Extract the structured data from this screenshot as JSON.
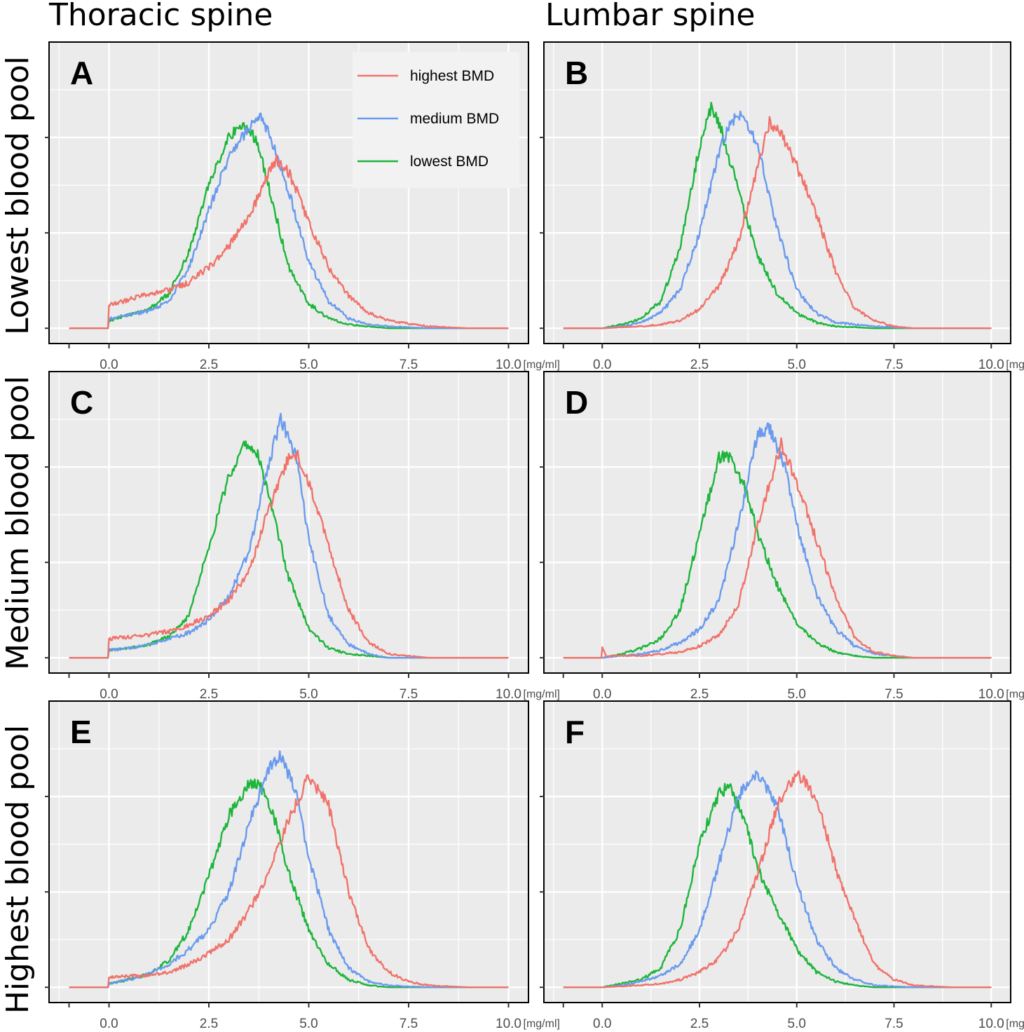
{
  "column_titles": [
    "Thoracic spine",
    "Lumbar spine"
  ],
  "row_titles": [
    "Lowest blood pool",
    "Medium blood pool",
    "Highest blood pool"
  ],
  "x_unit": "[mg/ml]",
  "colors": {
    "highest": "#F0736B",
    "medium": "#6A9AEE",
    "lowest": "#1DB53B",
    "panel_bg": "#EBEBEB",
    "grid": "#FFFFFF"
  },
  "legend": [
    "highest BMD",
    "medium BMD",
    "lowest BMD"
  ],
  "chart_data": [
    {
      "type": "line",
      "panel": "A",
      "column": "Thoracic spine",
      "row": "Lowest blood pool",
      "xlabel": "",
      "ylabel": "",
      "xlim": [
        -1,
        10
      ],
      "ylim": [
        0,
        1.2
      ],
      "xticks": [
        "0.0",
        "2.5",
        "5.0",
        "7.5",
        "10.0"
      ],
      "grid": true,
      "series": [
        {
          "name": "highest BMD",
          "x": [
            -1,
            0,
            0,
            0.5,
            1,
            1.5,
            2,
            2.5,
            3,
            3.5,
            4,
            4.2,
            4.5,
            5,
            5.5,
            6,
            6.5,
            7,
            8,
            9,
            10
          ],
          "y": [
            0,
            0,
            0.12,
            0.15,
            0.18,
            0.2,
            0.24,
            0.32,
            0.43,
            0.58,
            0.82,
            0.88,
            0.82,
            0.56,
            0.32,
            0.17,
            0.08,
            0.04,
            0.01,
            0,
            0
          ]
        },
        {
          "name": "medium BMD",
          "x": [
            -1,
            0,
            0,
            0.5,
            1,
            1.5,
            2,
            2.5,
            3,
            3.5,
            3.75,
            4,
            4.5,
            5,
            5.5,
            6,
            6.5,
            7,
            8,
            9,
            10
          ],
          "y": [
            0,
            0,
            0.05,
            0.07,
            0.09,
            0.14,
            0.32,
            0.62,
            0.9,
            1.05,
            1.12,
            1.02,
            0.72,
            0.35,
            0.14,
            0.05,
            0.02,
            0.01,
            0,
            0,
            0
          ]
        },
        {
          "name": "lowest BMD",
          "x": [
            -1,
            0,
            0,
            0.5,
            1,
            1.5,
            2,
            2.5,
            3,
            3.4,
            3.7,
            4,
            4.5,
            5,
            5.5,
            6,
            6.5,
            7,
            8,
            9,
            10
          ],
          "y": [
            0,
            0,
            0.04,
            0.07,
            0.1,
            0.18,
            0.4,
            0.75,
            1,
            1.07,
            0.98,
            0.74,
            0.32,
            0.13,
            0.05,
            0.02,
            0.01,
            0,
            0,
            0,
            0
          ]
        }
      ]
    },
    {
      "type": "line",
      "panel": "B",
      "column": "Lumbar spine",
      "row": "Lowest blood pool",
      "xlabel": "",
      "ylabel": "",
      "xlim": [
        -1,
        10
      ],
      "ylim": [
        0,
        1.2
      ],
      "xticks": [
        "0.0",
        "2.5",
        "5.0",
        "7.5",
        "10.0"
      ],
      "grid": true,
      "series": [
        {
          "name": "highest BMD",
          "x": [
            -1,
            0,
            1,
            1.5,
            2,
            2.5,
            3,
            3.5,
            4,
            4.3,
            4.6,
            5,
            5.5,
            6,
            6.5,
            7,
            7.5,
            8,
            9,
            10
          ],
          "y": [
            0,
            0,
            0.01,
            0.02,
            0.04,
            0.1,
            0.22,
            0.45,
            0.85,
            1.08,
            1.02,
            0.85,
            0.6,
            0.3,
            0.1,
            0.04,
            0.01,
            0,
            0,
            0
          ]
        },
        {
          "name": "medium BMD",
          "x": [
            -1,
            0,
            0.5,
            1,
            1.5,
            2,
            2.5,
            3,
            3.3,
            3.6,
            4,
            4.5,
            5,
            5.5,
            6,
            7,
            8,
            9,
            10
          ],
          "y": [
            0,
            0,
            0.01,
            0.03,
            0.08,
            0.2,
            0.5,
            0.92,
            1.08,
            1.14,
            0.95,
            0.52,
            0.2,
            0.08,
            0.03,
            0.01,
            0,
            0,
            0
          ]
        },
        {
          "name": "lowest BMD",
          "x": [
            -1,
            0,
            0.5,
            1,
            1.5,
            2,
            2.5,
            2.8,
            3,
            3.5,
            4,
            4.5,
            5,
            5.5,
            6,
            7,
            8,
            9,
            10
          ],
          "y": [
            0,
            0,
            0.02,
            0.05,
            0.14,
            0.42,
            0.95,
            1.15,
            1.08,
            0.72,
            0.38,
            0.18,
            0.08,
            0.03,
            0.01,
            0,
            0,
            0,
            0
          ]
        }
      ]
    },
    {
      "type": "line",
      "panel": "C",
      "column": "Thoracic spine",
      "row": "Medium blood pool",
      "xlabel": "",
      "ylabel": "",
      "xlim": [
        -1,
        10
      ],
      "ylim": [
        0,
        1.2
      ],
      "xticks": [
        "0.0",
        "2.5",
        "5.0",
        "7.5",
        "10.0"
      ],
      "grid": true,
      "series": [
        {
          "name": "highest BMD",
          "x": [
            -1,
            0,
            0,
            0.5,
            1,
            1.5,
            2,
            2.5,
            3,
            3.5,
            4,
            4.5,
            4.7,
            5,
            5.5,
            6,
            6.5,
            7,
            8,
            9,
            10
          ],
          "y": [
            0,
            0,
            0.1,
            0.11,
            0.12,
            0.14,
            0.17,
            0.22,
            0.3,
            0.45,
            0.78,
            1.05,
            1.07,
            0.92,
            0.58,
            0.25,
            0.08,
            0.02,
            0,
            0,
            0
          ]
        },
        {
          "name": "medium BMD",
          "x": [
            -1,
            0,
            0,
            0.5,
            1,
            1.5,
            2,
            2.5,
            3,
            3.5,
            4,
            4.3,
            4.7,
            5,
            5.5,
            6,
            6.5,
            7,
            8,
            9,
            10
          ],
          "y": [
            0,
            0,
            0.04,
            0.05,
            0.07,
            0.1,
            0.13,
            0.2,
            0.32,
            0.55,
            1.02,
            1.25,
            1.05,
            0.62,
            0.22,
            0.07,
            0.02,
            0,
            0,
            0,
            0
          ]
        },
        {
          "name": "lowest BMD",
          "x": [
            -1,
            0,
            0,
            0.5,
            1,
            1.5,
            2,
            2.5,
            3,
            3.4,
            3.7,
            4,
            4.5,
            5,
            5.5,
            6,
            6.5,
            7,
            8,
            9,
            10
          ],
          "y": [
            0,
            0,
            0.04,
            0.05,
            0.07,
            0.11,
            0.22,
            0.58,
            0.95,
            1.13,
            1.08,
            0.85,
            0.42,
            0.15,
            0.05,
            0.02,
            0.01,
            0,
            0,
            0,
            0
          ]
        }
      ]
    },
    {
      "type": "line",
      "panel": "D",
      "column": "Lumbar spine",
      "row": "Medium blood pool",
      "xlabel": "",
      "ylabel": "",
      "xlim": [
        -1,
        10
      ],
      "ylim": [
        0,
        1.2
      ],
      "xticks": [
        "0.0",
        "2.5",
        "5.0",
        "7.5",
        "10.0"
      ],
      "grid": true,
      "series": [
        {
          "name": "highest BMD",
          "x": [
            -1,
            0,
            0,
            0.1,
            1,
            2,
            2.5,
            3,
            3.5,
            4,
            4.6,
            5,
            5.5,
            6,
            6.5,
            7,
            7.5,
            8,
            9,
            10
          ],
          "y": [
            0,
            0,
            0.05,
            0.01,
            0.01,
            0.03,
            0.06,
            0.12,
            0.28,
            0.7,
            1.12,
            0.92,
            0.62,
            0.32,
            0.1,
            0.03,
            0.01,
            0,
            0,
            0
          ]
        },
        {
          "name": "medium BMD",
          "x": [
            -1,
            0,
            1,
            1.5,
            2,
            2.5,
            3,
            3.5,
            4,
            4.3,
            4.7,
            5,
            5.5,
            6,
            6.5,
            7,
            8,
            9,
            10
          ],
          "y": [
            0,
            0,
            0.02,
            0.04,
            0.08,
            0.15,
            0.3,
            0.7,
            1.18,
            1.2,
            1.0,
            0.7,
            0.33,
            0.15,
            0.06,
            0.02,
            0,
            0,
            0
          ]
        },
        {
          "name": "lowest BMD",
          "x": [
            -1,
            0,
            0.5,
            1,
            1.5,
            2,
            2.5,
            3,
            3.3,
            3.7,
            4,
            4.5,
            5,
            5.5,
            6,
            6.5,
            7,
            8,
            9,
            10
          ],
          "y": [
            0,
            0,
            0.02,
            0.05,
            0.1,
            0.25,
            0.65,
            1.05,
            1.05,
            0.88,
            0.65,
            0.38,
            0.18,
            0.08,
            0.03,
            0.01,
            0,
            0,
            0,
            0
          ]
        }
      ]
    },
    {
      "type": "line",
      "panel": "E",
      "column": "Thoracic spine",
      "row": "Highest blood pool",
      "xlabel": "",
      "ylabel": "",
      "xlim": [
        -1,
        10
      ],
      "ylim": [
        0,
        1.2
      ],
      "xticks": [
        "0.0",
        "2.5",
        "5.0",
        "7.5",
        "10.0"
      ],
      "grid": true,
      "series": [
        {
          "name": "highest BMD",
          "x": [
            -1,
            0,
            0,
            0.5,
            1,
            1.5,
            2,
            2.5,
            3,
            3.5,
            4,
            4.5,
            5,
            5.5,
            6,
            6.5,
            7,
            7.5,
            8,
            9,
            10
          ],
          "y": [
            0,
            0,
            0.05,
            0.06,
            0.06,
            0.08,
            0.12,
            0.18,
            0.25,
            0.4,
            0.6,
            0.88,
            1.1,
            0.95,
            0.5,
            0.2,
            0.08,
            0.03,
            0.01,
            0,
            0
          ]
        },
        {
          "name": "medium BMD",
          "x": [
            -1,
            0,
            0,
            0.5,
            1,
            1.5,
            2,
            2.5,
            3,
            3.5,
            4,
            4.3,
            4.7,
            5,
            5.5,
            6,
            6.5,
            7,
            8,
            9,
            10
          ],
          "y": [
            0,
            0,
            0.02,
            0.04,
            0.07,
            0.12,
            0.2,
            0.3,
            0.5,
            0.85,
            1.15,
            1.22,
            1.0,
            0.68,
            0.3,
            0.1,
            0.03,
            0.01,
            0,
            0,
            0
          ]
        },
        {
          "name": "lowest BMD",
          "x": [
            -1,
            0,
            0,
            0.5,
            1,
            1.5,
            2,
            2.5,
            3,
            3.5,
            3.8,
            4.2,
            4.5,
            5,
            5.5,
            6,
            6.5,
            7,
            8,
            9,
            10
          ],
          "y": [
            0,
            0,
            0.02,
            0.04,
            0.07,
            0.14,
            0.3,
            0.58,
            0.9,
            1.07,
            1.05,
            0.85,
            0.6,
            0.3,
            0.12,
            0.04,
            0.01,
            0,
            0,
            0,
            0
          ]
        }
      ]
    },
    {
      "type": "line",
      "panel": "F",
      "column": "Lumbar spine",
      "row": "Highest blood pool",
      "xlabel": "",
      "ylabel": "",
      "xlim": [
        -1,
        10
      ],
      "ylim": [
        0,
        1.2
      ],
      "xticks": [
        "0.0",
        "2.5",
        "5.0",
        "7.5",
        "10.0"
      ],
      "grid": true,
      "series": [
        {
          "name": "highest BMD",
          "x": [
            -1,
            0,
            1,
            1.5,
            2,
            2.5,
            3,
            3.5,
            4,
            4.5,
            5,
            5.5,
            6,
            6.5,
            7,
            7.5,
            8,
            9,
            10
          ],
          "y": [
            0,
            0,
            0.01,
            0.02,
            0.04,
            0.08,
            0.15,
            0.3,
            0.6,
            0.95,
            1.12,
            1.0,
            0.62,
            0.35,
            0.12,
            0.04,
            0.01,
            0,
            0
          ]
        },
        {
          "name": "medium BMD",
          "x": [
            -1,
            0,
            0.5,
            1,
            1.5,
            2,
            2.5,
            3,
            3.5,
            4,
            4.5,
            5,
            5.5,
            6,
            6.5,
            7,
            8,
            9,
            10
          ],
          "y": [
            0,
            0,
            0.01,
            0.03,
            0.06,
            0.12,
            0.3,
            0.65,
            1.0,
            1.13,
            0.95,
            0.55,
            0.25,
            0.1,
            0.04,
            0.01,
            0,
            0,
            0
          ]
        },
        {
          "name": "lowest BMD",
          "x": [
            -1,
            0,
            0.5,
            1,
            1.5,
            2,
            2.5,
            3,
            3.3,
            3.7,
            4,
            4.5,
            5,
            5.5,
            6,
            6.5,
            7,
            8,
            9,
            10
          ],
          "y": [
            0,
            0,
            0.02,
            0.04,
            0.1,
            0.3,
            0.75,
            1.02,
            1.05,
            0.85,
            0.62,
            0.4,
            0.2,
            0.08,
            0.03,
            0.01,
            0,
            0,
            0,
            0
          ]
        }
      ]
    }
  ]
}
